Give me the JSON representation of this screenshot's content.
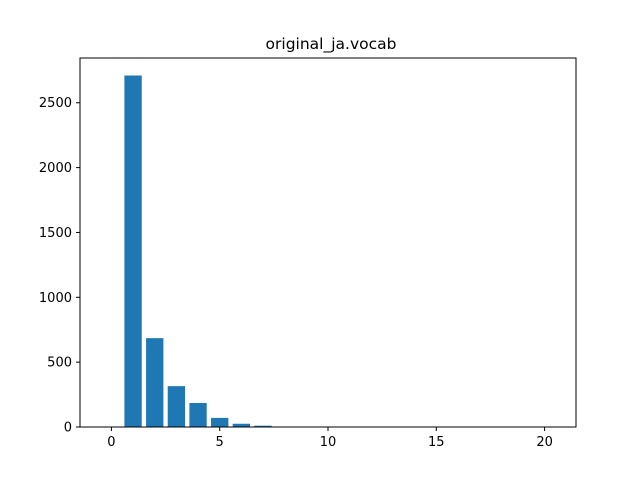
{
  "chart_data": {
    "type": "bar",
    "title": "original_ja.vocab",
    "xlabel": "",
    "ylabel": "",
    "x": [
      1,
      2,
      3,
      4,
      5,
      6,
      7,
      8,
      9,
      10,
      11,
      12,
      13,
      14,
      15,
      16,
      17,
      18,
      19,
      20
    ],
    "values": [
      2710,
      685,
      315,
      185,
      70,
      25,
      10,
      3,
      2,
      1,
      1,
      1,
      0,
      0,
      0,
      0,
      0,
      0,
      0,
      1
    ],
    "xlim": [
      -1.45,
      21.45
    ],
    "ylim": [
      0,
      2845
    ],
    "xticks": [
      0,
      5,
      10,
      15,
      20
    ],
    "yticks": [
      0,
      500,
      1000,
      1500,
      2000,
      2500
    ],
    "bar_color": "#1f77b4",
    "grid": false,
    "legend": "none"
  }
}
